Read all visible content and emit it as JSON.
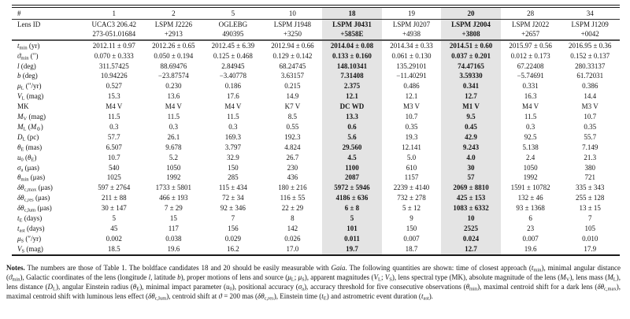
{
  "table": {
    "hash_label": "#",
    "lens_id_label": "Lens ID",
    "highlight_color": "#e4e4e4",
    "columns": [
      {
        "num": "1",
        "id_line1": "UCAC3 206.42",
        "id_line2": "273-051.01684",
        "highlight": false
      },
      {
        "num": "2",
        "id_line1": "LSPM J2226",
        "id_line2": "+2913",
        "highlight": false
      },
      {
        "num": "5",
        "id_line1": "OGLEBG",
        "id_line2": "490395",
        "highlight": false
      },
      {
        "num": "10",
        "id_line1": "LSPM J1948",
        "id_line2": "+3250",
        "highlight": false
      },
      {
        "num": "18",
        "id_line1": "LSPM J0431",
        "id_line2": "+5858E",
        "highlight": true
      },
      {
        "num": "19",
        "id_line1": "LSPM J0207",
        "id_line2": "+4938",
        "highlight": false
      },
      {
        "num": "20",
        "id_line1": "LSPM J2004",
        "id_line2": "+3808",
        "highlight": true
      },
      {
        "num": "28",
        "id_line1": "LSPM J2022",
        "id_line2": "+2657",
        "highlight": false
      },
      {
        "num": "34",
        "id_line1": "LSPM J1209",
        "id_line2": "+0042",
        "highlight": false
      }
    ],
    "rows": [
      {
        "name": "t-min",
        "label": [
          [
            "i",
            "t"
          ],
          [
            "sub",
            "min"
          ],
          [
            "n",
            " (yr)"
          ]
        ],
        "values": [
          "2012.11 ± 0.97",
          "2012.26 ± 0.65",
          "2012.45 ± 6.39",
          "2012.94 ± 0.66",
          "2014.04 ± 0.08",
          "2014.34 ± 0.33",
          "2014.51 ± 0.60",
          "2015.97 ± 0.56",
          "2016.95 ± 0.36"
        ]
      },
      {
        "name": "theta-min-arc",
        "label": [
          [
            "i",
            "ϑ"
          ],
          [
            "sub",
            "min"
          ],
          [
            "n",
            " (″)"
          ]
        ],
        "values": [
          "0.070 ± 0.333",
          "0.050 ± 0.194",
          "0.125 ± 0.468",
          "0.129 ± 0.142",
          "0.133 ± 0.160",
          "0.061 ± 0.130",
          "0.037 ± 0.201",
          "0.012 ± 0.173",
          "0.152 ± 0.137"
        ]
      },
      {
        "name": "gal-longitude",
        "label": [
          [
            "i",
            "l"
          ],
          [
            "n",
            " (deg)"
          ]
        ],
        "values": [
          "311.57425",
          "88.69476",
          "2.84945",
          "68.24745",
          "148.10341",
          "135.29101",
          "74.47165",
          "67.22408",
          "280.33137"
        ]
      },
      {
        "name": "gal-latitude",
        "label": [
          [
            "i",
            "b"
          ],
          [
            "n",
            " (deg)"
          ]
        ],
        "values": [
          "10.94226",
          "−23.87574",
          "−3.40778",
          "3.63157",
          "7.31408",
          "−11.40291",
          "3.59330",
          "−5.74691",
          "61.72031"
        ]
      },
      {
        "name": "mu-lens",
        "label": [
          [
            "i",
            "μ"
          ],
          [
            "sub",
            "L"
          ],
          [
            "n",
            " (″/yr)"
          ]
        ],
        "values": [
          "0.527",
          "0.230",
          "0.186",
          "0.215",
          "2.375",
          "0.486",
          "0.341",
          "0.331",
          "0.386"
        ]
      },
      {
        "name": "v-lens",
        "label": [
          [
            "i",
            "V"
          ],
          [
            "sub",
            "L"
          ],
          [
            "n",
            " (mag)"
          ]
        ],
        "values": [
          "15.3",
          "13.6",
          "17.6",
          "14.9",
          "12.1",
          "12.1",
          "12.7",
          "16.3",
          "14.4"
        ]
      },
      {
        "name": "mk-type",
        "label": [
          [
            "n",
            "MK"
          ]
        ],
        "values": [
          "M4 V",
          "M4 V",
          "M4 V",
          "K7 V",
          "DC WD",
          "M3 V",
          "M1 V",
          "M4 V",
          "M3 V"
        ]
      },
      {
        "name": "abs-mag",
        "label": [
          [
            "i",
            "M"
          ],
          [
            "sub",
            "V"
          ],
          [
            "n",
            " (mag)"
          ]
        ],
        "values": [
          "11.5",
          "11.5",
          "11.5",
          "8.5",
          "13.3",
          "10.7",
          "9.5",
          "11.5",
          "10.7"
        ]
      },
      {
        "name": "lens-mass",
        "label": [
          [
            "i",
            "M"
          ],
          [
            "sub",
            "L"
          ],
          [
            "n",
            " ("
          ],
          [
            "i",
            "M"
          ],
          [
            "sub",
            "⊙"
          ],
          [
            "n",
            ")"
          ]
        ],
        "values": [
          "0.3",
          "0.3",
          "0.3",
          "0.55",
          "0.6",
          "0.35",
          "0.45",
          "0.3",
          "0.35"
        ]
      },
      {
        "name": "lens-distance",
        "label": [
          [
            "i",
            "D"
          ],
          [
            "sub",
            "L"
          ],
          [
            "n",
            " (pc)"
          ]
        ],
        "values": [
          "57.7",
          "26.1",
          "169.3",
          "192.3",
          "5.6",
          "19.3",
          "42.9",
          "92.5",
          "55.7"
        ]
      },
      {
        "name": "einstein-radius",
        "label": [
          [
            "i",
            "θ"
          ],
          [
            "sub",
            "E"
          ],
          [
            "n",
            " (mas)"
          ]
        ],
        "values": [
          "6.507",
          "9.678",
          "3.797",
          "4.824",
          "29.560",
          "12.141",
          "9.243",
          "5.138",
          "7.149"
        ]
      },
      {
        "name": "impact-param",
        "label": [
          [
            "i",
            "u"
          ],
          [
            "sub",
            "0"
          ],
          [
            "n",
            " ("
          ],
          [
            "i",
            "θ"
          ],
          [
            "sub",
            "E"
          ],
          [
            "n",
            ")"
          ]
        ],
        "values": [
          "10.7",
          "5.2",
          "32.9",
          "26.7",
          "4.5",
          "5.0",
          "4.0",
          "2.4",
          "21.3"
        ]
      },
      {
        "name": "sigma-a",
        "label": [
          [
            "i",
            "σ"
          ],
          [
            "sub",
            "a"
          ],
          [
            "n",
            " (μas)"
          ]
        ],
        "values": [
          "540",
          "1050",
          "150",
          "230",
          "1100",
          "610",
          "30",
          "1050",
          "380"
        ]
      },
      {
        "name": "theta-min-uas",
        "label": [
          [
            "i",
            "θ"
          ],
          [
            "sub",
            "min"
          ],
          [
            "n",
            " (μas)"
          ]
        ],
        "values": [
          "1025",
          "1992",
          "285",
          "436",
          "2087",
          "1157",
          "57",
          "1992",
          "721"
        ]
      },
      {
        "name": "shift-cmax",
        "label": [
          [
            "i",
            "δθ"
          ],
          [
            "sub",
            "c,max"
          ],
          [
            "n",
            " (μas)"
          ]
        ],
        "values": [
          "597 ± 2764",
          "1733 ± 5801",
          "115 ± 434",
          "180 ± 216",
          "5972 ± 5946",
          "2239 ± 4140",
          "2069 ± 8810",
          "1591 ± 10782",
          "335 ± 343"
        ]
      },
      {
        "name": "shift-cres",
        "label": [
          [
            "i",
            "δθ"
          ],
          [
            "sub",
            "c,res"
          ],
          [
            "n",
            " (μas)"
          ]
        ],
        "values": [
          "211 ± 88",
          "466 ± 193",
          "72 ± 34",
          "116 ± 55",
          "4186 ± 636",
          "732 ± 278",
          "425 ± 153",
          "132 ± 46",
          "255 ± 128"
        ]
      },
      {
        "name": "shift-clum",
        "label": [
          [
            "i",
            "δθ"
          ],
          [
            "sub",
            "c,lum"
          ],
          [
            "n",
            " (μas)"
          ]
        ],
        "values": [
          "30 ± 147",
          "7 ± 29",
          "92 ± 346",
          "22 ± 29",
          "6 ± 8",
          "5 ± 12",
          "1083 ± 6332",
          "93 ± 1368",
          "13 ± 15"
        ]
      },
      {
        "name": "einstein-time",
        "label": [
          [
            "i",
            "t"
          ],
          [
            "sub",
            "E"
          ],
          [
            "n",
            " (days)"
          ]
        ],
        "values": [
          "5",
          "15",
          "7",
          "8",
          "5",
          "9",
          "10",
          "6",
          "7"
        ]
      },
      {
        "name": "ast-duration",
        "label": [
          [
            "i",
            "t"
          ],
          [
            "sub",
            "ast"
          ],
          [
            "n",
            " (days)"
          ]
        ],
        "values": [
          "45",
          "117",
          "156",
          "142",
          "101",
          "150",
          "2525",
          "23",
          "105"
        ]
      },
      {
        "name": "mu-source",
        "label": [
          [
            "i",
            "μ"
          ],
          [
            "sub",
            "S"
          ],
          [
            "n",
            " (″/yr)"
          ]
        ],
        "values": [
          "0.002",
          "0.038",
          "0.029",
          "0.026",
          "0.011",
          "0.007",
          "0.024",
          "0.007",
          "0.010"
        ]
      },
      {
        "name": "v-source",
        "label": [
          [
            "i",
            "V"
          ],
          [
            "sub",
            "S"
          ],
          [
            "n",
            " (mag)"
          ]
        ],
        "values": [
          "18.5",
          "19.6",
          "16.2",
          "17.0",
          "19.7",
          "18.7",
          "12.7",
          "19.6",
          "17.9"
        ]
      }
    ]
  },
  "notes": {
    "segments": [
      [
        "b",
        "Notes."
      ],
      [
        "n",
        " The numbers are those of Table 1. The boldface candidates 18 and 20 should be easily measurable with "
      ],
      [
        "i",
        "Gaia"
      ],
      [
        "n",
        ". The following quantities are shown: time of closest approach ("
      ],
      [
        "i",
        "t"
      ],
      [
        "sub",
        "min"
      ],
      [
        "n",
        "), minimal angular distance ("
      ],
      [
        "i",
        "ϑ"
      ],
      [
        "sub",
        "min"
      ],
      [
        "n",
        "), Galactic coordinates of the lens (longitude "
      ],
      [
        "i",
        "l"
      ],
      [
        "n",
        ", latitude "
      ],
      [
        "i",
        "b"
      ],
      [
        "n",
        "), proper motions of lens and source ("
      ],
      [
        "i",
        "μ"
      ],
      [
        "sub",
        "L"
      ],
      [
        "n",
        "; "
      ],
      [
        "i",
        "μ"
      ],
      [
        "sub",
        "S"
      ],
      [
        "n",
        "), apparent magnitudes ("
      ],
      [
        "i",
        "V"
      ],
      [
        "sub",
        "L"
      ],
      [
        "n",
        "; "
      ],
      [
        "i",
        "V"
      ],
      [
        "sub",
        "S"
      ],
      [
        "n",
        "), lens spectral type (MK), absolute magnitude of the lens ("
      ],
      [
        "i",
        "M"
      ],
      [
        "sub",
        "V"
      ],
      [
        "n",
        "), lens mass ("
      ],
      [
        "i",
        "M"
      ],
      [
        "sub",
        "L"
      ],
      [
        "n",
        "), lens distance ("
      ],
      [
        "i",
        "D"
      ],
      [
        "sub",
        "L"
      ],
      [
        "n",
        "), angular Einstein radius ("
      ],
      [
        "i",
        "θ"
      ],
      [
        "sub",
        "E"
      ],
      [
        "n",
        "), minimal impact parameter ("
      ],
      [
        "i",
        "u"
      ],
      [
        "sub",
        "0"
      ],
      [
        "n",
        "), positional accuracy ("
      ],
      [
        "i",
        "σ"
      ],
      [
        "sub",
        "a"
      ],
      [
        "n",
        "), accuracy threshold for five consecutive observations ("
      ],
      [
        "i",
        "θ"
      ],
      [
        "sub",
        "min"
      ],
      [
        "n",
        "), maximal centroid shift for a dark lens ("
      ],
      [
        "i",
        "δθ"
      ],
      [
        "sub",
        "c,max"
      ],
      [
        "n",
        "), maximal centroid shift with luminous lens effect ("
      ],
      [
        "i",
        "δθ"
      ],
      [
        "sub",
        "c,lum"
      ],
      [
        "n",
        "), centroid shift at "
      ],
      [
        "i",
        "ϑ"
      ],
      [
        "n",
        " = 200 mas ("
      ],
      [
        "i",
        "δθ"
      ],
      [
        "sub",
        "c,res"
      ],
      [
        "n",
        "), Einstein time ("
      ],
      [
        "i",
        "t"
      ],
      [
        "sub",
        "E"
      ],
      [
        "n",
        ") and astrometric event duration ("
      ],
      [
        "i",
        "t"
      ],
      [
        "sub",
        "ast"
      ],
      [
        "n",
        ")."
      ]
    ]
  }
}
